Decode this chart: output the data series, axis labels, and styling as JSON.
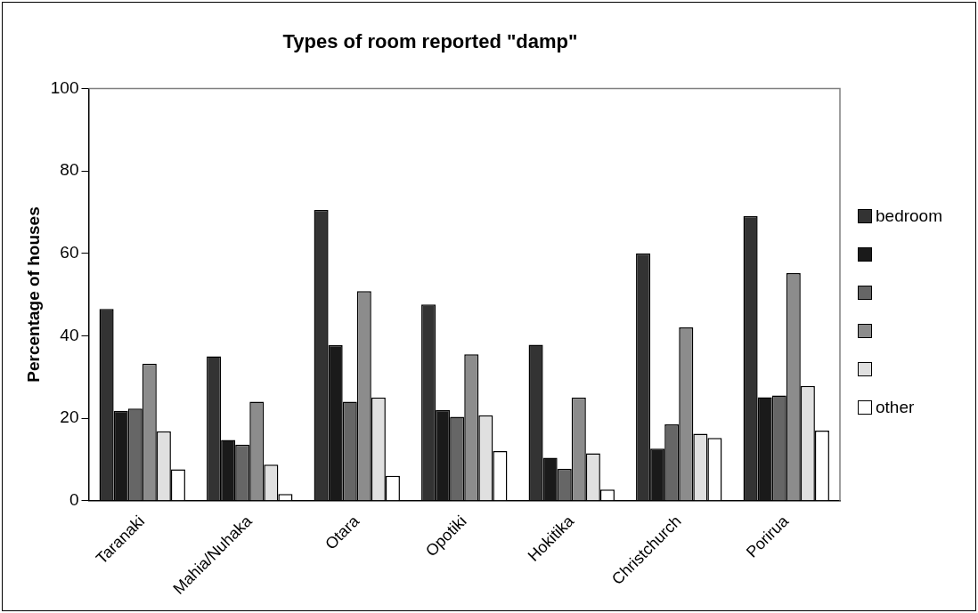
{
  "chart_data": {
    "type": "bar",
    "title": "Types of room reported \"damp\"",
    "ylabel": "Percentage of houses",
    "categories": [
      "Taranaki",
      "Mahia/Nuhaka",
      "Otara",
      "Opotiki",
      "Hokitika",
      "Christchurch",
      "Porirua"
    ],
    "series": [
      {
        "name": "bedroom",
        "color": "#333333",
        "values": [
          46.5,
          35,
          70.5,
          47.6,
          37.8,
          60,
          69
        ]
      },
      {
        "color": "#1a1a1a",
        "values": [
          21.8,
          14.7,
          37.7,
          22,
          10.4,
          12.6,
          25.1
        ]
      },
      {
        "color": "#666666",
        "values": [
          22.3,
          13.6,
          24,
          20.3,
          7.7,
          18.5,
          25.5
        ]
      },
      {
        "color": "#8c8c8c",
        "values": [
          33.2,
          24,
          50.8,
          35.5,
          25,
          42,
          55.2
        ]
      },
      {
        "color": "#e0e0e0",
        "values": [
          16.8,
          8.7,
          25,
          20.7,
          11.5,
          16.2,
          27.8
        ]
      },
      {
        "name": "other",
        "color": "#ffffff",
        "values": [
          7.6,
          1.6,
          6,
          12,
          2.7,
          15.2,
          17
        ]
      }
    ],
    "ylim": [
      0,
      100
    ],
    "yticks": [
      0,
      20,
      40,
      60,
      80,
      100
    ],
    "grid": false,
    "legend": "right"
  }
}
